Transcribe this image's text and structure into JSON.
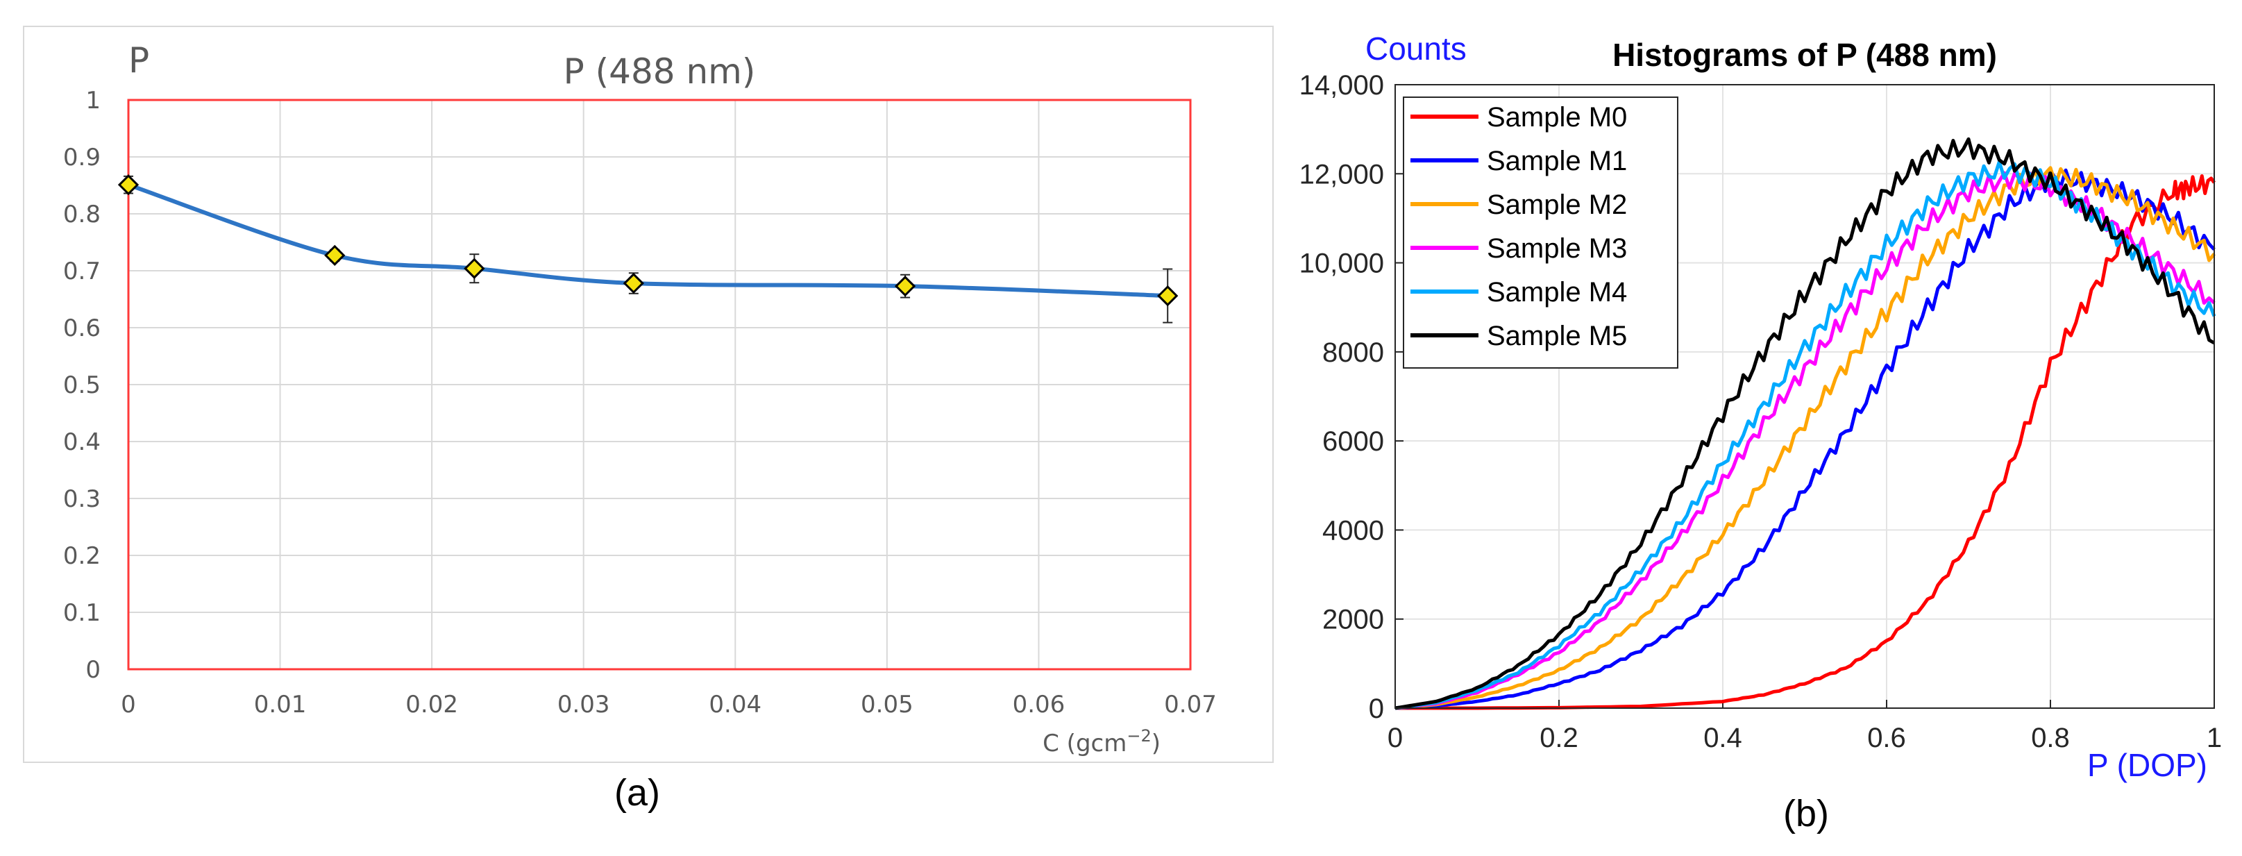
{
  "chart_data": [
    {
      "panel_label": "(a)",
      "type": "line",
      "title": "P (488 nm)",
      "ylabel": "P",
      "xlabel": "C (gcm",
      "xlabel_superscript": "−2",
      "xlabel_close": ")",
      "xlim": [
        0,
        0.07
      ],
      "ylim": [
        0,
        1
      ],
      "x_ticks": [
        0,
        0.01,
        0.02,
        0.03,
        0.04,
        0.05,
        0.06,
        0.07
      ],
      "x_tick_labels": [
        "0",
        "0.01",
        "0.02",
        "0.03",
        "0.04",
        "0.05",
        "0.06",
        "0.07"
      ],
      "y_ticks": [
        0,
        0.1,
        0.2,
        0.3,
        0.4,
        0.5,
        0.6,
        0.7,
        0.8,
        0.9,
        1
      ],
      "y_tick_labels": [
        "0",
        "0.1",
        "0.2",
        "0.3",
        "0.4",
        "0.5",
        "0.6",
        "0.7",
        "0.8",
        "0.9",
        "1"
      ],
      "grid": true,
      "line_color": "#2e75c5",
      "marker_color": "#f5e10d",
      "plot_border_color": "#ff3a3a",
      "series": [
        {
          "x": [
            0,
            0.0136,
            0.0228,
            0.0333,
            0.0512,
            0.0685
          ],
          "y": [
            0.851,
            0.727,
            0.704,
            0.678,
            0.673,
            0.656
          ],
          "yerr": [
            0.015,
            0.01,
            0.025,
            0.018,
            0.02,
            0.047
          ]
        }
      ]
    },
    {
      "panel_label": "(b)",
      "type": "line",
      "title": "Histograms of P (488 nm)",
      "ylabel": "Counts",
      "xlabel": "P (DOP)",
      "xlim": [
        0,
        1
      ],
      "ylim": [
        0,
        14000
      ],
      "x_ticks": [
        0,
        0.2,
        0.4,
        0.6,
        0.8,
        1
      ],
      "x_tick_labels": [
        "0",
        "0.2",
        "0.4",
        "0.6",
        "0.8",
        "1"
      ],
      "y_ticks": [
        0,
        2000,
        4000,
        6000,
        8000,
        10000,
        12000,
        14000
      ],
      "y_tick_labels": [
        "0",
        "2000",
        "4000",
        "6000",
        "8000",
        "10,000",
        "12,000",
        "14,000"
      ],
      "grid": true,
      "label_color": "#1a1aff",
      "legend_position": "top-left",
      "series": [
        {
          "name": "Sample M0",
          "color": "#ff0000",
          "x": [
            0,
            0.1,
            0.2,
            0.3,
            0.4,
            0.45,
            0.5,
            0.55,
            0.6,
            0.65,
            0.7,
            0.75,
            0.8,
            0.85,
            0.9,
            0.95,
            0.97,
            1.0
          ],
          "y": [
            0,
            0,
            10,
            40,
            150,
            300,
            550,
            900,
            1500,
            2400,
            3700,
            5400,
            7700,
            9300,
            10900,
            11600,
            11700,
            11800
          ]
        },
        {
          "name": "Sample M1",
          "color": "#0000ff",
          "x": [
            0,
            0.05,
            0.1,
            0.15,
            0.2,
            0.25,
            0.3,
            0.35,
            0.4,
            0.45,
            0.5,
            0.55,
            0.6,
            0.65,
            0.7,
            0.75,
            0.8,
            0.85,
            0.9,
            0.95,
            1.0
          ],
          "y": [
            0,
            50,
            150,
            300,
            550,
            850,
            1300,
            1850,
            2600,
            3600,
            4900,
            6200,
            7600,
            9000,
            10300,
            11300,
            11900,
            11800,
            11500,
            11000,
            10300
          ]
        },
        {
          "name": "Sample M2",
          "color": "#ffa500",
          "x": [
            0,
            0.05,
            0.1,
            0.15,
            0.2,
            0.25,
            0.3,
            0.35,
            0.4,
            0.45,
            0.5,
            0.55,
            0.6,
            0.65,
            0.7,
            0.75,
            0.8,
            0.85,
            0.9,
            0.95,
            1.0
          ],
          "y": [
            0,
            80,
            250,
            500,
            850,
            1350,
            2000,
            2900,
            3900,
            5100,
            6400,
            7700,
            8900,
            10100,
            11000,
            11700,
            12000,
            11800,
            11400,
            10800,
            10200
          ]
        },
        {
          "name": "Sample M3",
          "color": "#ff00ff",
          "x": [
            0,
            0.05,
            0.1,
            0.15,
            0.2,
            0.25,
            0.3,
            0.35,
            0.4,
            0.45,
            0.5,
            0.55,
            0.6,
            0.65,
            0.7,
            0.75,
            0.8,
            0.85,
            0.9,
            0.95,
            1.0
          ],
          "y": [
            0,
            100,
            350,
            750,
            1250,
            1950,
            2850,
            3900,
            5100,
            6400,
            7600,
            8800,
            9900,
            10900,
            11600,
            11900,
            11700,
            11200,
            10500,
            9800,
            9100
          ]
        },
        {
          "name": "Sample M4",
          "color": "#00aaff",
          "x": [
            0,
            0.05,
            0.1,
            0.15,
            0.2,
            0.25,
            0.3,
            0.35,
            0.4,
            0.45,
            0.5,
            0.55,
            0.6,
            0.65,
            0.7,
            0.75,
            0.8,
            0.85,
            0.9,
            0.95,
            1.0
          ],
          "y": [
            0,
            120,
            400,
            800,
            1400,
            2150,
            3100,
            4200,
            5500,
            6800,
            8100,
            9300,
            10400,
            11300,
            11900,
            12100,
            11800,
            11100,
            10300,
            9500,
            8800
          ]
        },
        {
          "name": "Sample M5",
          "color": "#000000",
          "x": [
            0,
            0.05,
            0.1,
            0.15,
            0.2,
            0.25,
            0.3,
            0.35,
            0.4,
            0.45,
            0.5,
            0.55,
            0.6,
            0.65,
            0.7,
            0.75,
            0.8,
            0.85,
            0.9,
            0.95,
            1.0
          ],
          "y": [
            0,
            150,
            450,
            950,
            1650,
            2550,
            3700,
            5100,
            6600,
            8000,
            9300,
            10500,
            11600,
            12400,
            12600,
            12300,
            11800,
            11100,
            10300,
            9300,
            8200
          ]
        }
      ]
    }
  ]
}
